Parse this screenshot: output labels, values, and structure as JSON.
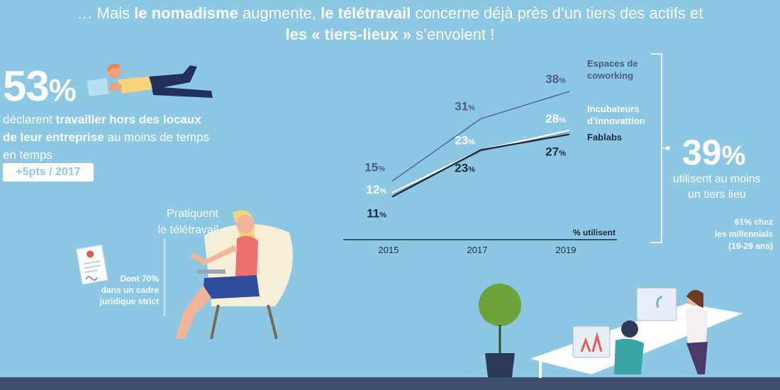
{
  "header": {
    "line1": {
      "p1": "… Mais ",
      "b1": "le nomadisme",
      "p2": " augmente, ",
      "b2": "le télétravail",
      "p3": " concerne déjà près d’un tiers des actifs et"
    },
    "line2": {
      "b1": "les « tiers-lieux »",
      "p1": " s’envolent !"
    }
  },
  "stat53": {
    "value": "53",
    "unit": "%",
    "d1": "déclarent ",
    "d2": "travailler hors des locaux de leur entreprise",
    "d3": " au moins de temps en temps",
    "badge": "+5pts / 2017"
  },
  "teletravail": {
    "line1": "Pratiquent",
    "line2": "le télétravail",
    "note_line1": "Dont 70%",
    "note_line2": "dans un cadre",
    "note_line3": "juridique strict"
  },
  "stat39": {
    "value": "39",
    "unit": "%",
    "line1": "utilisent au moins",
    "line2": "un tiers lieu",
    "note_line1": "61% chez",
    "note_line2": "les millennials",
    "note_line3": "(19-29 ans)"
  },
  "chart_data": {
    "type": "line",
    "x": [
      "2015",
      "2017",
      "2019"
    ],
    "xlabel": "",
    "ylabel": "",
    "note": "% utilisent",
    "ylim": [
      0,
      40
    ],
    "series": [
      {
        "name": "Espaces de coworking",
        "name_lines": [
          "Espaces de",
          "coworking"
        ],
        "values": [
          15,
          31,
          38
        ],
        "labels": [
          "15",
          "31",
          "38"
        ],
        "color": "#5a6a90",
        "label_color": "#4d5d80"
      },
      {
        "name": "Incubateurs d’innovattion",
        "name_lines": [
          "Incubateurs",
          "d’innovattion"
        ],
        "values": [
          12,
          23,
          28
        ],
        "labels": [
          "12",
          "23",
          "28"
        ],
        "color": "#ffffff",
        "label_color": "#ffffff"
      },
      {
        "name": "Fablabs",
        "name_lines": [
          "Fablabs"
        ],
        "values": [
          11,
          23,
          27
        ],
        "labels": [
          "11",
          "23",
          "27"
        ],
        "color": "#1f2a40",
        "label_color": "#1f2a40"
      }
    ]
  }
}
